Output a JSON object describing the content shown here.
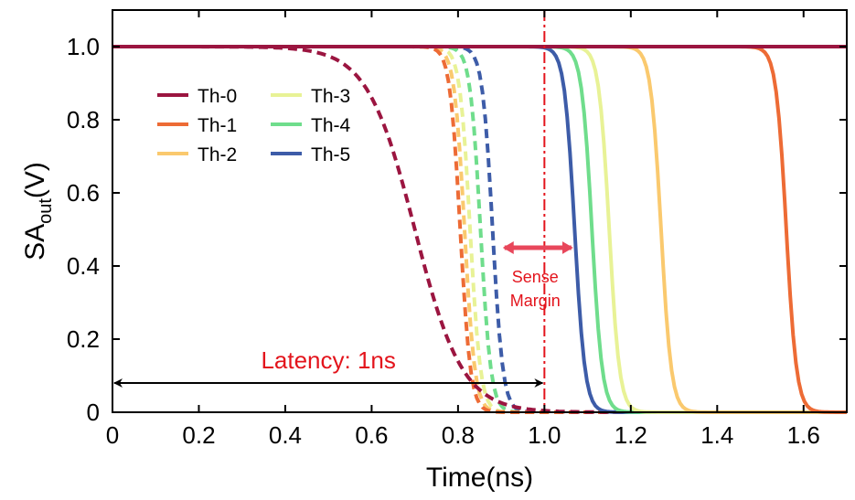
{
  "chart_data": {
    "type": "line",
    "xlabel": "Time(ns)",
    "ylabel_main": "SA",
    "ylabel_sub": "out",
    "ylabel_unit": "(V)",
    "xlim": [
      0,
      1.7
    ],
    "ylim": [
      0,
      1.1
    ],
    "xticks": [
      0,
      0.2,
      0.4,
      0.6,
      0.8,
      1.0,
      1.2,
      1.4,
      1.6
    ],
    "xtick_labels": [
      "0",
      "0.2",
      "0.4",
      "0.6",
      "0.8",
      "1.0",
      "1.2",
      "1.4",
      "1.6"
    ],
    "yticks": [
      0,
      0.2,
      0.4,
      0.6,
      0.8,
      1.0
    ],
    "ytick_labels": [
      "0",
      "0.2",
      "0.4",
      "0.6",
      "0.8",
      "1.0"
    ],
    "grid": false,
    "legend_position": "upper-left",
    "series": [
      {
        "name": "Th-0",
        "color": "#9b1540",
        "solid_midpoint": null,
        "dashed_midpoint": 0.7,
        "dashed_width": 0.055
      },
      {
        "name": "Th-1",
        "color": "#ed6b35",
        "solid_midpoint": 1.56,
        "dashed_midpoint": 0.805,
        "dashed_width": 0.012
      },
      {
        "name": "Th-2",
        "color": "#fac96e",
        "solid_midpoint": 1.27,
        "dashed_midpoint": 0.815,
        "dashed_width": 0.012
      },
      {
        "name": "Th-3",
        "color": "#e8f296",
        "solid_midpoint": 1.15,
        "dashed_midpoint": 0.828,
        "dashed_width": 0.012
      },
      {
        "name": "Th-4",
        "color": "#6fdd8c",
        "solid_midpoint": 1.11,
        "dashed_midpoint": 0.852,
        "dashed_width": 0.012
      },
      {
        "name": "Th-5",
        "color": "#3d5ca8",
        "solid_midpoint": 1.07,
        "dashed_midpoint": 0.88,
        "dashed_width": 0.012
      }
    ],
    "annotations": {
      "latency": {
        "text": "Latency: 1ns",
        "x_start": 0,
        "x_end": 1.0,
        "y": 0.08,
        "color": "#000000",
        "text_color": "#e3141c"
      },
      "sense_margin": {
        "line1": "Sense",
        "line2": "Margin",
        "x_start": 0.895,
        "x_end": 1.075,
        "y": 0.45,
        "color": "#e8475b",
        "text_color": "#e3141c"
      },
      "reference_line": {
        "x": 1.0,
        "color": "#e3141c"
      }
    }
  }
}
